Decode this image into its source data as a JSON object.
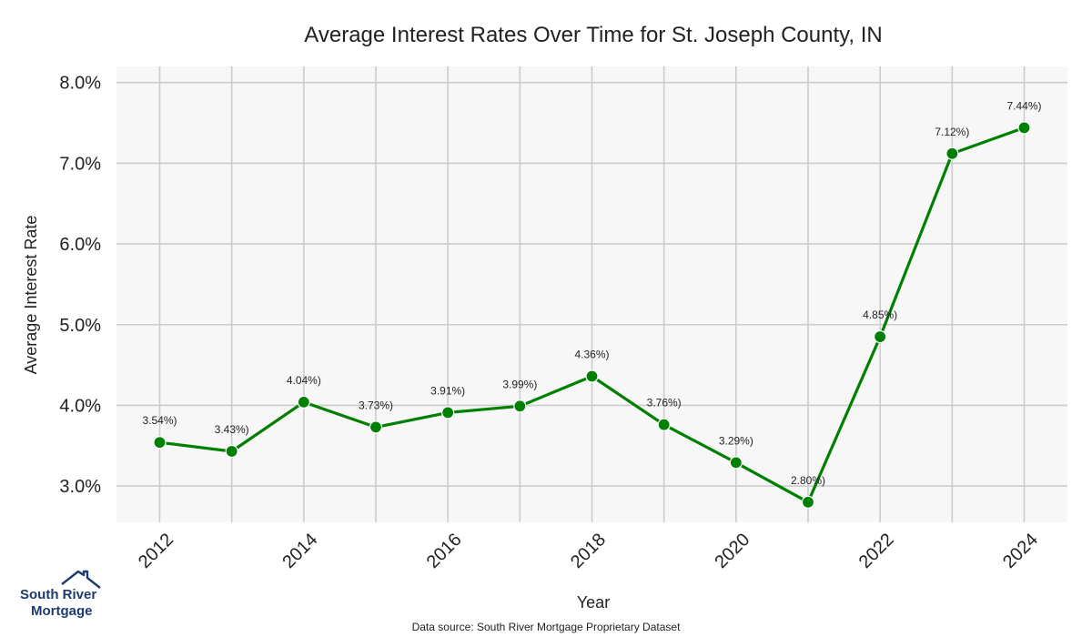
{
  "chart_data": {
    "type": "line",
    "title": "Average Interest Rates Over Time for St. Joseph County, IN",
    "xlabel": "Year",
    "ylabel": "Average Interest Rate",
    "x": [
      2012,
      2013,
      2014,
      2015,
      2016,
      2017,
      2018,
      2019,
      2020,
      2021,
      2022,
      2023,
      2024
    ],
    "values": [
      3.54,
      3.43,
      4.04,
      3.73,
      3.91,
      3.99,
      4.36,
      3.76,
      3.29,
      2.8,
      4.85,
      7.12,
      7.44
    ],
    "data_labels": [
      "3.54%)",
      "3.43%)",
      "4.04%)",
      "3.73%)",
      "3.91%)",
      "3.99%)",
      "4.36%)",
      "3.76%)",
      "3.29%)",
      "2.80%)",
      "4.85%)",
      "7.12%)",
      "7.44%)"
    ],
    "x_ticks": [
      "2012",
      "2014",
      "2016",
      "2018",
      "2020",
      "2022",
      "2024"
    ],
    "y_ticks": [
      "3.0%",
      "4.0%",
      "5.0%",
      "6.0%",
      "7.0%",
      "8.0%"
    ],
    "y_tick_values": [
      3,
      4,
      5,
      6,
      7,
      8
    ],
    "xlim": [
      2011.4,
      2024.6
    ],
    "ylim": [
      2.55,
      8.2
    ],
    "grid": true,
    "line_color": "#008000",
    "plot_background": "#f7f7f7",
    "source": "Data source: South River Mortgage Proprietary Dataset"
  },
  "logo": {
    "line1": "South River",
    "line2": "Mortgage",
    "color": "#1f3a6e"
  }
}
